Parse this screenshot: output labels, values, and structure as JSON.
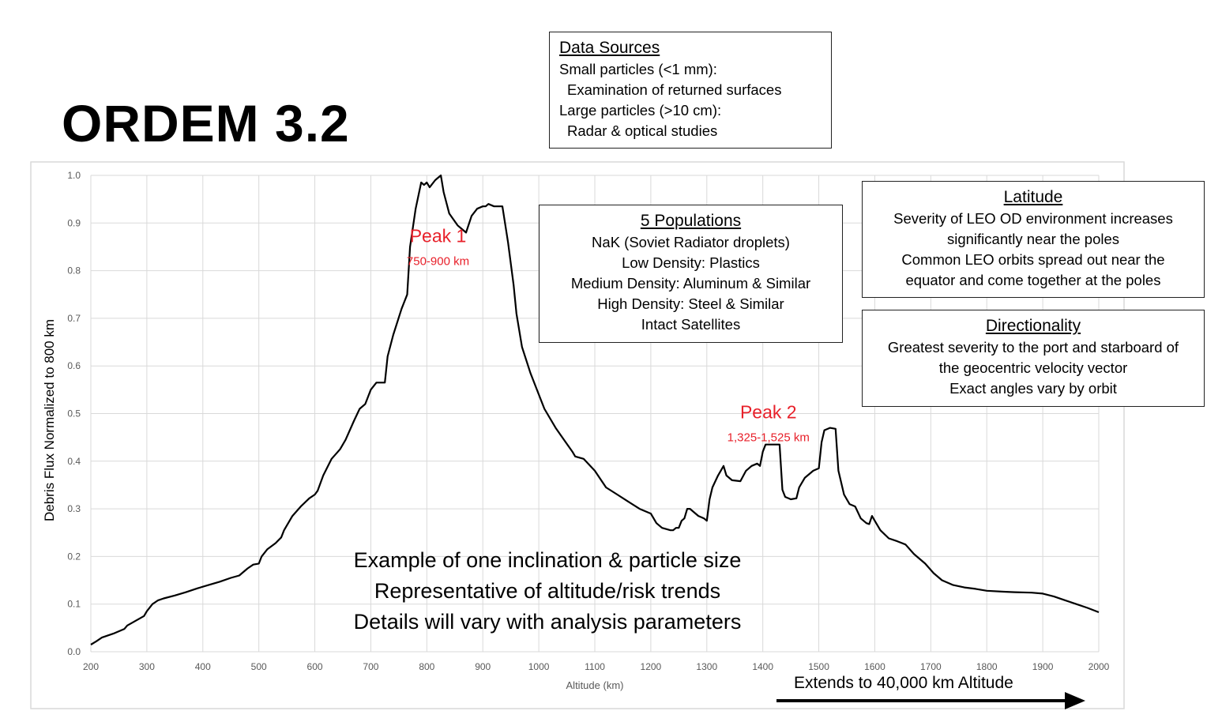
{
  "title": "ORDEM 3.2",
  "data_sources": {
    "heading": "Data Sources",
    "lines": [
      "Small particles (<1 mm):",
      "Examination of returned surfaces",
      "Large particles (>10 cm):",
      "Radar & optical studies"
    ]
  },
  "populations": {
    "heading": "5 Populations",
    "lines": [
      "NaK (Soviet Radiator droplets)",
      "Low Density: Plastics",
      "Medium Density: Aluminum & Similar",
      "High Density: Steel & Similar",
      "Intact Satellites"
    ]
  },
  "latitude": {
    "heading": "Latitude",
    "lines": [
      "Severity of LEO OD environment increases",
      "significantly near the poles",
      "Common LEO orbits spread out near the",
      "equator and come together at the poles"
    ]
  },
  "directionality": {
    "heading": "Directionality",
    "lines": [
      "Greatest severity to the port and starboard of",
      "the geocentric velocity vector",
      "Exact angles vary by orbit"
    ]
  },
  "note_lines": [
    "Example of one inclination & particle size",
    "Representative of altitude/risk trends",
    "Details will vary with analysis parameters"
  ],
  "extends_label": "Extends to 40,000 km Altitude",
  "colors": {
    "line": "#000000",
    "annotation": "#e8202a",
    "grid": "#d9d9d9"
  },
  "chart_data": {
    "type": "line",
    "xlabel": "Altitude (km)",
    "ylabel": "Debris Flux Normalized to 800 km",
    "xlim": [
      200,
      2000
    ],
    "ylim": [
      0,
      1.0
    ],
    "xticks": [
      "200",
      "300",
      "400",
      "500",
      "600",
      "700",
      "800",
      "900",
      "1000",
      "1100",
      "1200",
      "1300",
      "1400",
      "1500",
      "1600",
      "1700",
      "1800",
      "1900",
      "2000"
    ],
    "yticks": [
      "0.0",
      "0.1",
      "0.2",
      "0.3",
      "0.4",
      "0.5",
      "0.6",
      "0.7",
      "0.8",
      "0.9",
      "1.0"
    ],
    "grid": true,
    "annotations": [
      {
        "label": "Peak 1",
        "sublabel": "750-900 km",
        "x": 820,
        "y": 0.86
      },
      {
        "label": "Peak 2",
        "sublabel": "1,325-1,525 km",
        "x": 1410,
        "y": 0.49
      }
    ],
    "x": [
      200,
      210,
      220,
      240,
      260,
      265,
      280,
      295,
      300,
      310,
      320,
      330,
      350,
      370,
      390,
      410,
      430,
      450,
      465,
      470,
      480,
      490,
      500,
      505,
      515,
      530,
      540,
      545,
      560,
      575,
      590,
      600,
      605,
      615,
      630,
      645,
      655,
      670,
      680,
      690,
      695,
      700,
      710,
      725,
      730,
      740,
      755,
      765,
      770,
      780,
      790,
      795,
      800,
      805,
      815,
      825,
      830,
      840,
      855,
      870,
      880,
      890,
      900,
      905,
      910,
      920,
      935,
      945,
      955,
      960,
      970,
      985,
      1000,
      1010,
      1030,
      1045,
      1060,
      1065,
      1080,
      1100,
      1120,
      1140,
      1160,
      1180,
      1200,
      1210,
      1220,
      1235,
      1240,
      1245,
      1250,
      1255,
      1260,
      1265,
      1270,
      1285,
      1295,
      1300,
      1305,
      1310,
      1320,
      1330,
      1335,
      1345,
      1360,
      1370,
      1380,
      1390,
      1395,
      1400,
      1405,
      1425,
      1430,
      1435,
      1440,
      1450,
      1460,
      1465,
      1475,
      1490,
      1500,
      1505,
      1510,
      1520,
      1530,
      1535,
      1545,
      1555,
      1565,
      1575,
      1585,
      1590,
      1595,
      1600,
      1610,
      1625,
      1640,
      1655,
      1670,
      1690,
      1705,
      1720,
      1740,
      1760,
      1780,
      1800,
      1830,
      1850,
      1880,
      1900,
      1920,
      1940,
      1960,
      1980,
      2000
    ],
    "y": [
      0.015,
      0.022,
      0.03,
      0.038,
      0.048,
      0.055,
      0.065,
      0.075,
      0.085,
      0.1,
      0.108,
      0.112,
      0.118,
      0.125,
      0.133,
      0.14,
      0.147,
      0.155,
      0.16,
      0.165,
      0.175,
      0.183,
      0.185,
      0.2,
      0.215,
      0.228,
      0.24,
      0.255,
      0.285,
      0.305,
      0.322,
      0.33,
      0.338,
      0.37,
      0.405,
      0.425,
      0.445,
      0.485,
      0.51,
      0.52,
      0.535,
      0.55,
      0.565,
      0.565,
      0.62,
      0.665,
      0.72,
      0.75,
      0.85,
      0.93,
      0.985,
      0.98,
      0.985,
      0.975,
      0.99,
      1.0,
      0.965,
      0.92,
      0.895,
      0.88,
      0.915,
      0.93,
      0.935,
      0.935,
      0.94,
      0.935,
      0.935,
      0.86,
      0.77,
      0.71,
      0.64,
      0.585,
      0.54,
      0.51,
      0.47,
      0.445,
      0.42,
      0.41,
      0.405,
      0.38,
      0.345,
      0.33,
      0.315,
      0.3,
      0.29,
      0.27,
      0.26,
      0.255,
      0.255,
      0.26,
      0.26,
      0.275,
      0.28,
      0.3,
      0.3,
      0.285,
      0.28,
      0.275,
      0.32,
      0.345,
      0.37,
      0.39,
      0.37,
      0.36,
      0.358,
      0.38,
      0.39,
      0.395,
      0.39,
      0.42,
      0.435,
      0.435,
      0.435,
      0.34,
      0.325,
      0.32,
      0.322,
      0.345,
      0.365,
      0.38,
      0.385,
      0.44,
      0.465,
      0.47,
      0.468,
      0.38,
      0.33,
      0.31,
      0.305,
      0.28,
      0.27,
      0.268,
      0.285,
      0.275,
      0.255,
      0.238,
      0.232,
      0.225,
      0.205,
      0.185,
      0.165,
      0.15,
      0.14,
      0.135,
      0.132,
      0.128,
      0.126,
      0.125,
      0.124,
      0.122,
      0.116,
      0.108,
      0.1,
      0.092,
      0.083
    ]
  }
}
